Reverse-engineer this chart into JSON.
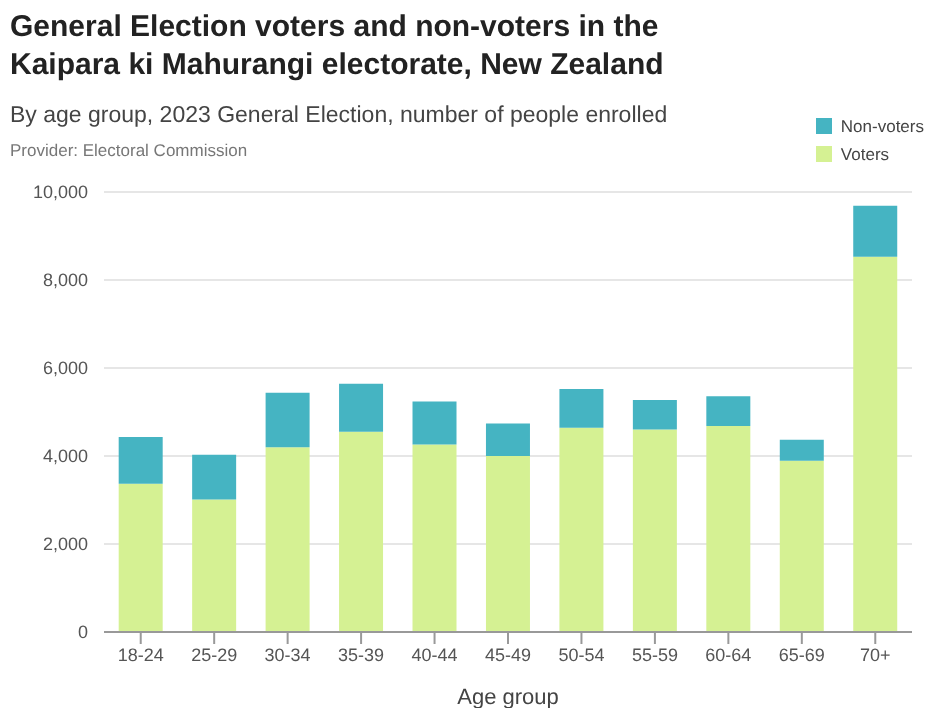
{
  "chart_data": {
    "type": "bar",
    "title": "General Election voters and non-voters in the Kaipara ki Mahurangi electorate, New Zealand",
    "subtitle": "By age group, 2023 General Election, number of people enrolled",
    "annotations": [
      "Provider: Electoral Commission"
    ],
    "xlabel": "Age group",
    "categories": [
      "18-24",
      "25-29",
      "30-34",
      "35-39",
      "40-44",
      "45-49",
      "50-54",
      "55-59",
      "60-64",
      "65-69",
      "70+"
    ],
    "series": [
      {
        "name": "Voters",
        "color": "#d5f193",
        "values": [
          3370,
          3010,
          4200,
          4550,
          4260,
          4000,
          4640,
          4600,
          4680,
          3890,
          8530
        ]
      },
      {
        "name": "Non-voters",
        "color": "#45b4c2",
        "values": [
          1060,
          1020,
          1240,
          1090,
          980,
          740,
          880,
          670,
          680,
          480,
          1160
        ]
      }
    ],
    "stacked": true,
    "ylim": [
      0,
      10000
    ],
    "yticks": [
      {
        "value": 0,
        "label": "0"
      },
      {
        "value": 2000,
        "label": "2,000"
      },
      {
        "value": 4000,
        "label": "4,000"
      },
      {
        "value": 6000,
        "label": "6,000"
      },
      {
        "value": 8000,
        "label": "8,000"
      },
      {
        "value": 10000,
        "label": "10,000"
      }
    ],
    "grid": "y",
    "legend": "top right"
  }
}
